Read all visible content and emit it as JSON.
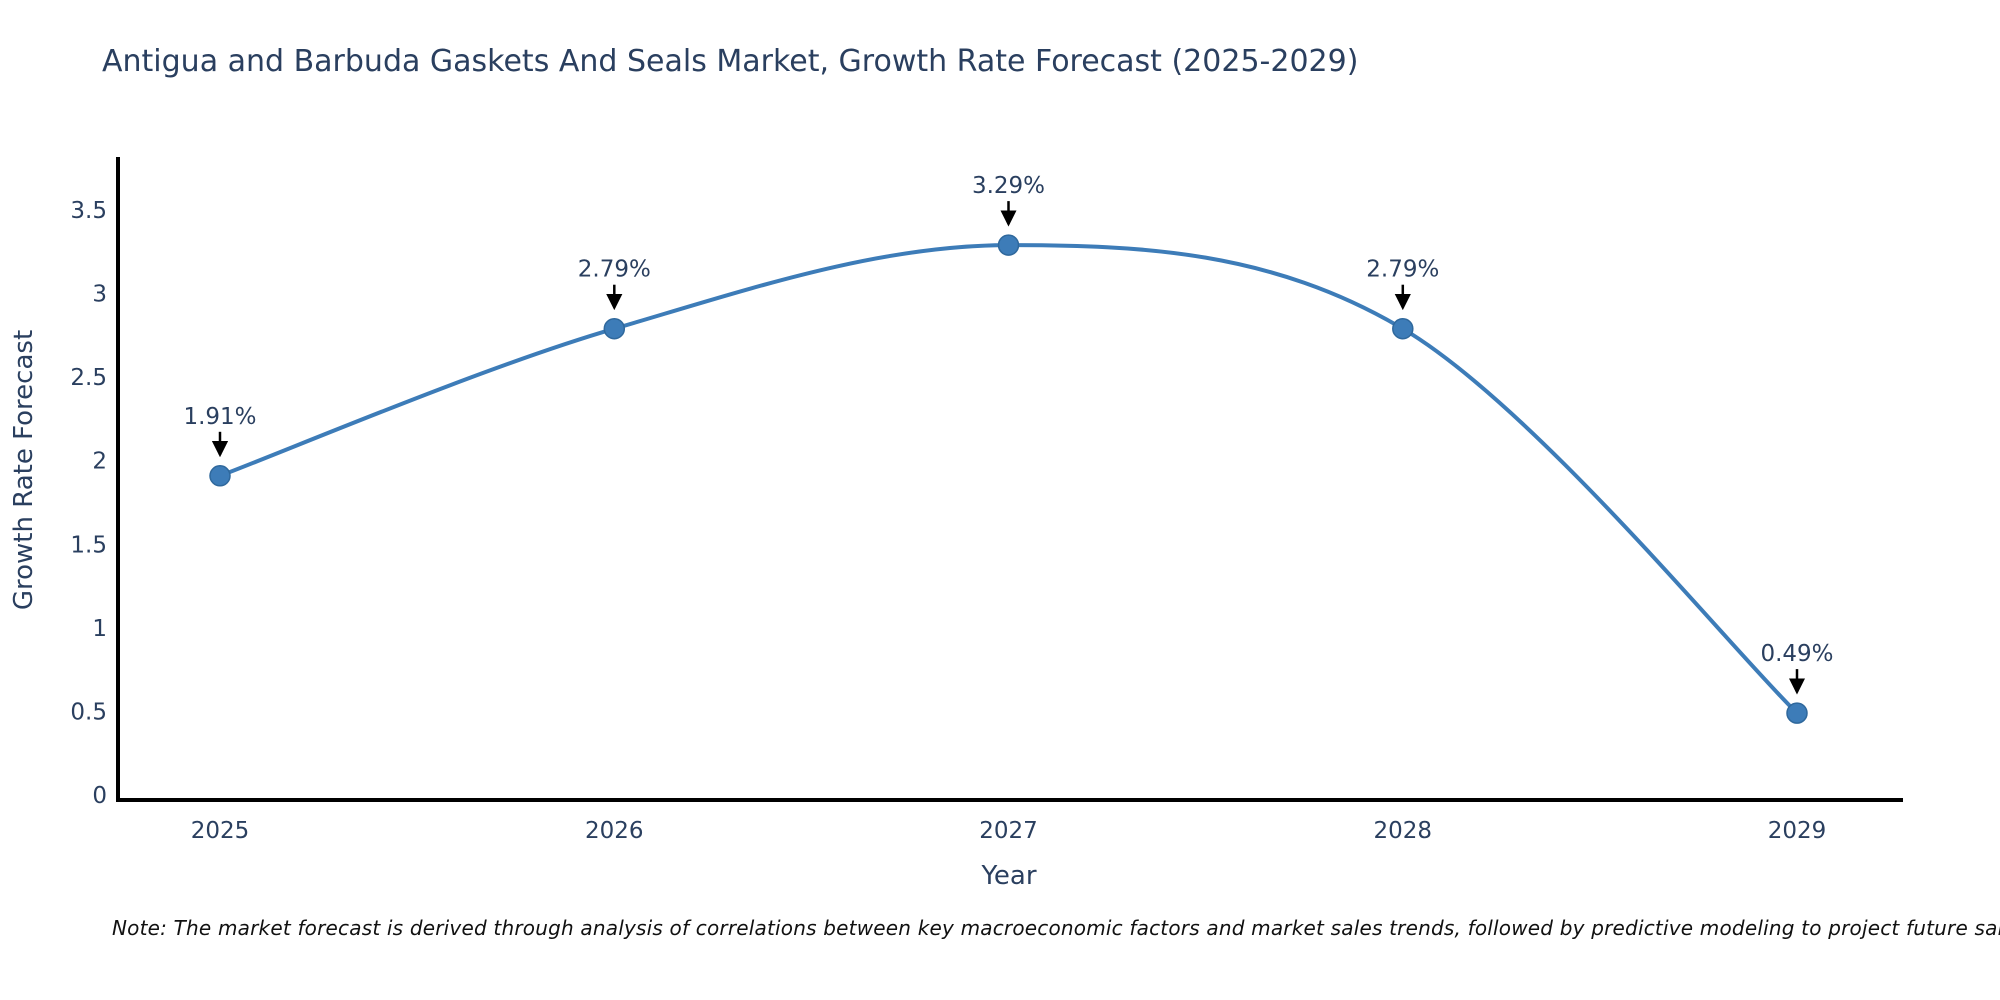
{
  "chart_data": {
    "type": "line",
    "title": "Antigua and Barbuda Gaskets And Seals Market, Growth Rate Forecast (2025-2029)",
    "xlabel": "Year",
    "ylabel": "Growth Rate Forecast",
    "categories": [
      "2025",
      "2026",
      "2027",
      "2028",
      "2029"
    ],
    "values": [
      1.91,
      2.79,
      3.29,
      2.79,
      0.49
    ],
    "point_labels": [
      "1.91%",
      "2.79%",
      "3.29%",
      "2.79%",
      "0.49%"
    ],
    "yticks": [
      "0",
      "0.5",
      "1",
      "1.5",
      "2",
      "2.5",
      "3",
      "3.5"
    ],
    "ylim": [
      0,
      3.8
    ],
    "line_shape": "spline",
    "grid": false,
    "legend": false,
    "line_color": "#3d7cb8",
    "marker_color": "#3d7cb8",
    "marker_edge_color": "#2f689c",
    "annotation_arrow_color": "#000000",
    "axis_color": "#000000",
    "text_color": "#2a3f5f"
  },
  "note": "Note: The market forecast is derived through analysis of correlations between key macroeconomic factors and market sales trends, followed by predictive modeling to project future sales"
}
